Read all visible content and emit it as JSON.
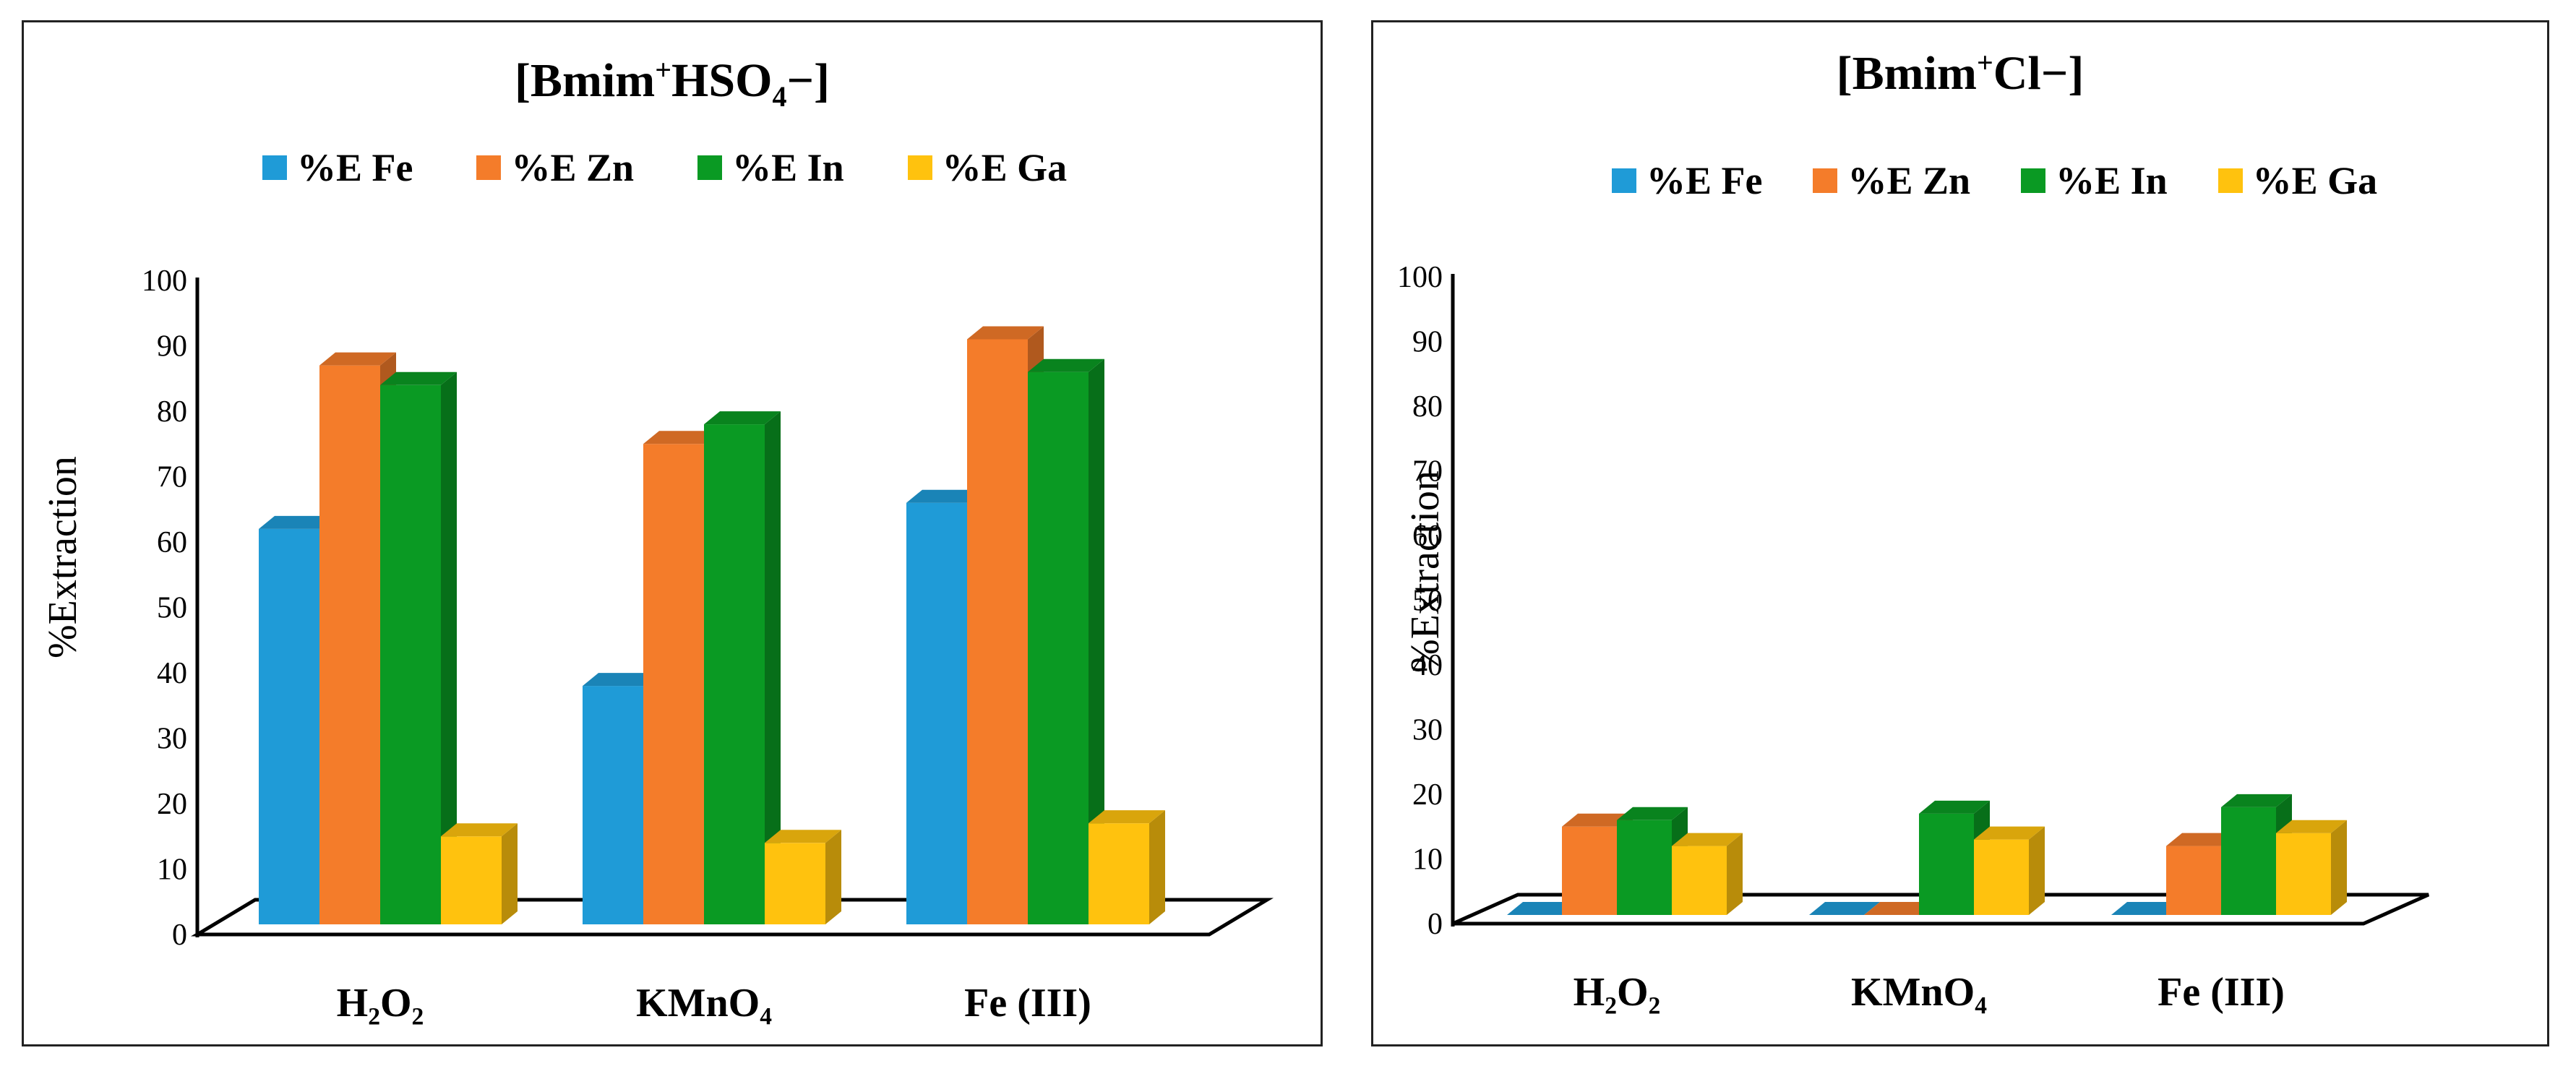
{
  "colors": {
    "fe": "#1f9bd7",
    "zn": "#f47c2a",
    "in": "#0a9a23",
    "ga": "#ffc20e"
  },
  "chart_data": [
    {
      "type": "bar",
      "title": "[Bmim+HSO4−]",
      "title_parts": {
        "base": "[Bmim",
        "sup": "+",
        "mid": "HSO",
        "sub": "4",
        "end": "−]"
      },
      "ylabel": "%Extraction",
      "xlabel": "",
      "ylim": [
        0,
        100
      ],
      "yticks": [
        "0",
        "10",
        "20",
        "30",
        "40",
        "50",
        "60",
        "70",
        "80",
        "90",
        "100"
      ],
      "categories": [
        "H₂O₂",
        "KMnO₄",
        "Fe (III)"
      ],
      "series": [
        {
          "name": "%E Fe",
          "key": "fe",
          "values": [
            62,
            38,
            66
          ]
        },
        {
          "name": "%E Zn",
          "key": "zn",
          "values": [
            87,
            75,
            91
          ]
        },
        {
          "name": "%E In",
          "key": "in",
          "values": [
            84,
            78,
            86
          ]
        },
        {
          "name": "%E Ga",
          "key": "ga",
          "values": [
            15,
            14,
            17
          ]
        }
      ],
      "legend_position": "top"
    },
    {
      "type": "bar",
      "title": "[Bmim+Cl−]",
      "title_parts": {
        "base": "[Bmim",
        "sup": "+",
        "mid": "Cl",
        "sub": "",
        "end": "−]"
      },
      "ylabel": "%Extraction",
      "xlabel": "",
      "ylim": [
        0,
        100
      ],
      "yticks": [
        "0",
        "10",
        "20",
        "30",
        "40",
        "50",
        "60",
        "70",
        "80",
        "90",
        "100"
      ],
      "categories": [
        "H₂O₂",
        "KMnO₄",
        "Fe (III)"
      ],
      "series": [
        {
          "name": "%E Fe",
          "key": "fe",
          "values": [
            0,
            0,
            0
          ]
        },
        {
          "name": "%E Zn",
          "key": "zn",
          "values": [
            15,
            0,
            12
          ]
        },
        {
          "name": "%E In",
          "key": "in",
          "values": [
            16,
            17,
            18
          ]
        },
        {
          "name": "%E Ga",
          "key": "ga",
          "values": [
            12,
            13,
            14
          ]
        }
      ],
      "legend_position": "top"
    }
  ]
}
